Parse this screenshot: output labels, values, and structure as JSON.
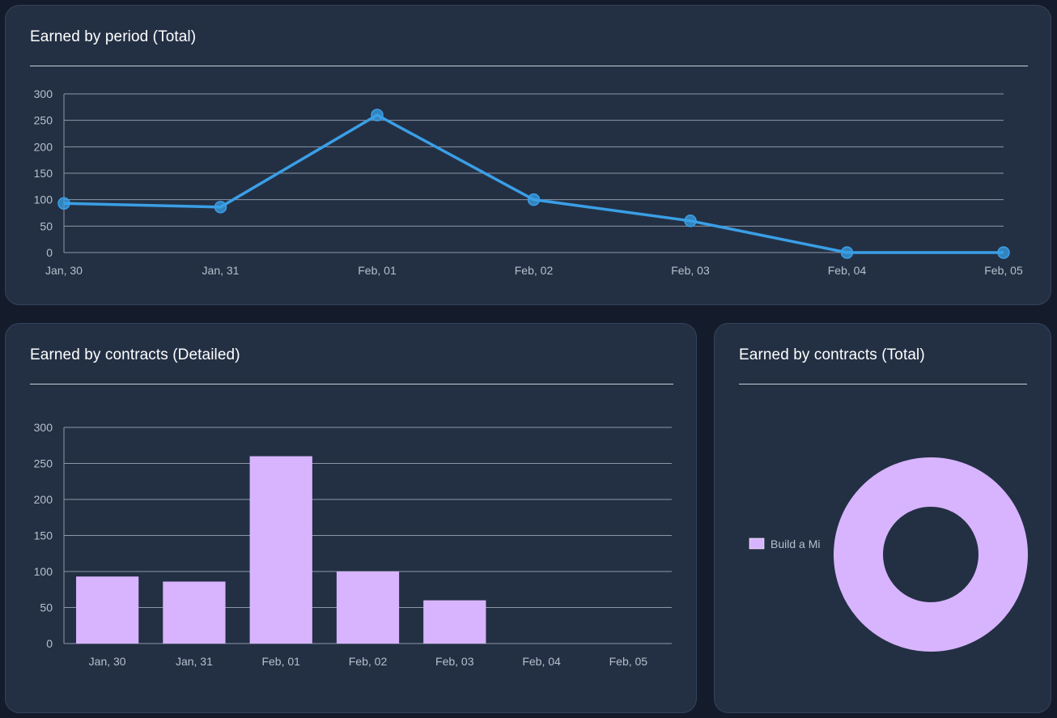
{
  "cards": {
    "period": {
      "title": "Earned by period (Total)"
    },
    "detailed": {
      "title": "Earned by contracts (Detailed)"
    },
    "total": {
      "title": "Earned by contracts (Total)"
    }
  },
  "colors": {
    "line": "#3a9fe6",
    "bar": "#d8b4fe",
    "grid": "#8d96a6",
    "donut": "#d8b4fe"
  },
  "chart_data": [
    {
      "type": "line",
      "title": "Earned by period (Total)",
      "categories": [
        "Jan, 30",
        "Jan, 31",
        "Feb, 01",
        "Feb, 02",
        "Feb, 03",
        "Feb, 04",
        "Feb, 05"
      ],
      "values": [
        93,
        86,
        260,
        100,
        60,
        0,
        0
      ],
      "ylim": [
        0,
        300
      ],
      "yticks": [
        0,
        50,
        100,
        150,
        200,
        250,
        300
      ],
      "grid": true,
      "xlabel": "",
      "ylabel": ""
    },
    {
      "type": "bar",
      "title": "Earned by contracts (Detailed)",
      "categories": [
        "Jan, 30",
        "Jan, 31",
        "Feb, 01",
        "Feb, 02",
        "Feb, 03",
        "Feb, 04",
        "Feb, 05"
      ],
      "values": [
        93,
        86,
        260,
        100,
        60,
        0,
        0
      ],
      "ylim": [
        0,
        300
      ],
      "yticks": [
        0,
        50,
        100,
        150,
        200,
        250,
        300
      ],
      "grid": true,
      "xlabel": "",
      "ylabel": ""
    },
    {
      "type": "pie",
      "title": "Earned by contracts (Total)",
      "donut": true,
      "labels": [
        "Build a Mi"
      ],
      "values": [
        599
      ],
      "legend": "left"
    }
  ]
}
